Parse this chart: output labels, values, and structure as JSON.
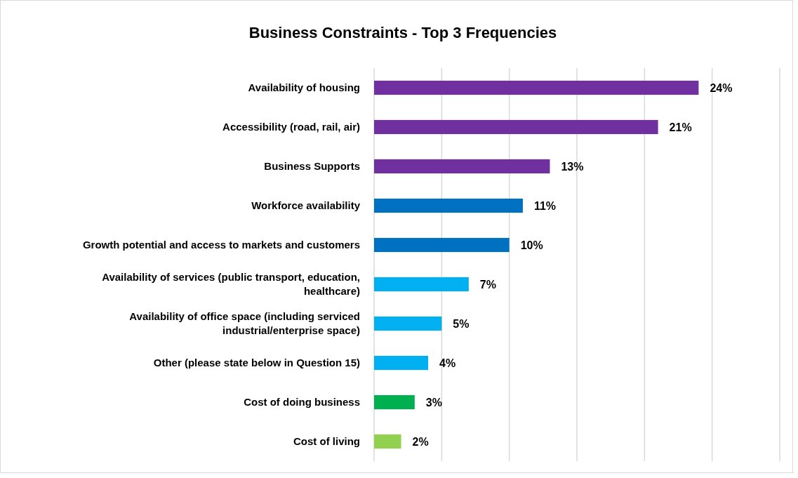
{
  "chart_data": {
    "type": "bar",
    "orientation": "horizontal",
    "title": "Business Constraints - Top 3 Frequencies",
    "categories": [
      "Availability of housing",
      "Accessibility (road, rail, air)",
      "Business Supports",
      "Workforce availability",
      "Growth potential and access to markets and customers",
      "Availability of services (public transport, education, healthcare)",
      "Availability of office space (including serviced industrial/enterprise space)",
      "Other (please state below in Question 15)",
      "Cost of doing business",
      "Cost of living"
    ],
    "values": [
      24,
      21,
      13,
      11,
      10,
      7,
      5,
      4,
      3,
      2
    ],
    "value_labels": [
      "24%",
      "21%",
      "13%",
      "11%",
      "10%",
      "7%",
      "5%",
      "4%",
      "3%",
      "2%"
    ],
    "colors": [
      "#7030a0",
      "#7030a0",
      "#7030a0",
      "#0070c0",
      "#0070c0",
      "#00b0f0",
      "#00b0f0",
      "#00b0f0",
      "#00b050",
      "#92d050"
    ],
    "xlim": [
      0,
      30
    ],
    "xticks": [
      {
        "value": 0,
        "label": null
      },
      {
        "value": 5,
        "label": null
      },
      {
        "value": 10,
        "label": null
      },
      {
        "value": 15,
        "label": null
      },
      {
        "value": 20,
        "label": null
      },
      {
        "value": 25,
        "label": null
      },
      {
        "value": 30,
        "label": null
      }
    ],
    "grid": "x"
  }
}
